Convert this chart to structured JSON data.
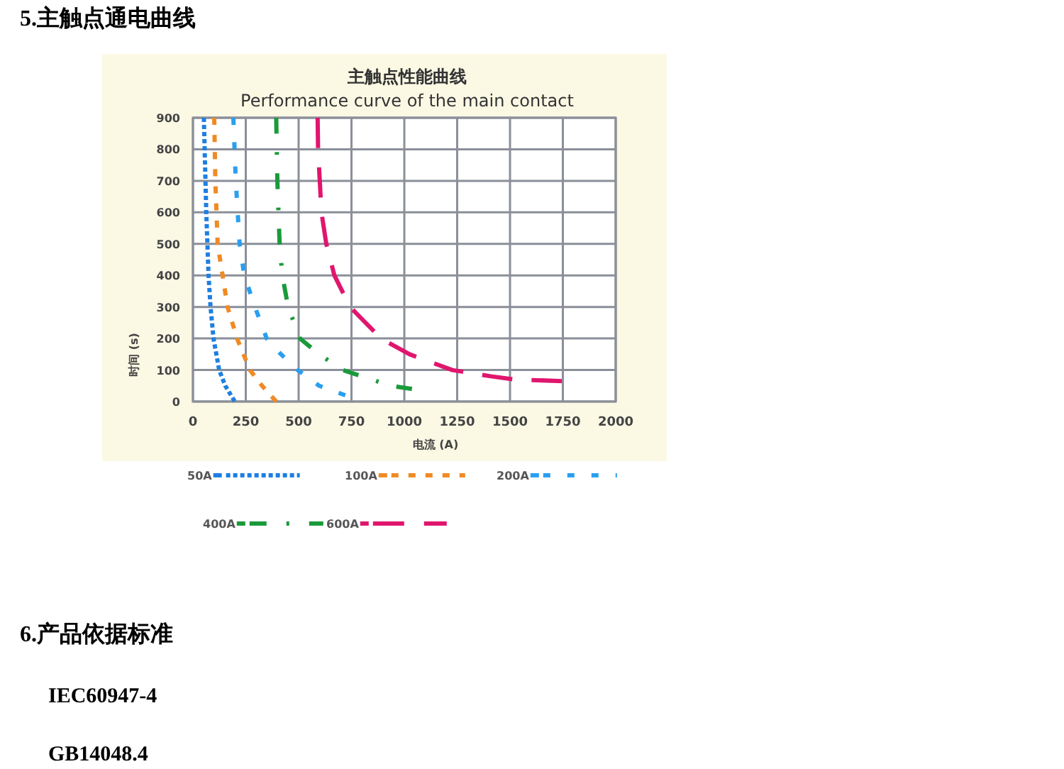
{
  "chart_data": {
    "type": "line",
    "title": "主触点性能曲线",
    "subtitle": "Performance curve of the main contact",
    "xlabel": "电流 (A)",
    "ylabel": "时间 (s)",
    "annotations": [
      "5.主触点通电曲线",
      "6.产品依据标准",
      "IEC60947-4",
      "GB14048.4"
    ],
    "xlim": [
      0,
      2000
    ],
    "xticks": [
      0,
      250,
      500,
      750,
      1000,
      1250,
      1500,
      1750,
      2000
    ],
    "ylim": [
      0,
      900
    ],
    "yticks": [
      0,
      100,
      200,
      300,
      400,
      500,
      600,
      700,
      800,
      900
    ],
    "grid": true,
    "legend": "bottom",
    "series": [
      {
        "name": "50A",
        "color": "#1e7fe0",
        "line_style": "dotted",
        "x": [
          52,
          63,
          74,
          83,
          97,
          124,
          153,
          198
        ],
        "values": [
          900,
          600,
          400,
          300,
          200,
          100,
          50,
          0
        ]
      },
      {
        "name": "100A",
        "color": "#f08a24",
        "line_style": "dashed",
        "x": [
          101,
          106,
          117,
          140,
          164,
          209,
          270,
          327,
          394
        ],
        "values": [
          900,
          700,
          500,
          400,
          300,
          200,
          100,
          50,
          0
        ]
      },
      {
        "name": "200A",
        "color": "#2a9fef",
        "line_style": "dashed",
        "x": [
          191,
          203,
          221,
          243,
          293,
          349,
          417,
          495,
          597,
          721
        ],
        "values": [
          900,
          700,
          500,
          400,
          300,
          200,
          150,
          100,
          50,
          20
        ]
      },
      {
        "name": "400A",
        "color": "#1a9a3a",
        "line_style": "dashed",
        "x": [
          394,
          399,
          410,
          423,
          450,
          507,
          597,
          709,
          800,
          935,
          1036
        ],
        "values": [
          900,
          700,
          500,
          400,
          300,
          200,
          150,
          100,
          80,
          50,
          40
        ]
      },
      {
        "name": "600A",
        "color": "#e0166e",
        "line_style": "dashed",
        "x": [
          590,
          592,
          608,
          631,
          669,
          743,
          890,
          1025,
          1227,
          1408,
          1520,
          1745
        ],
        "values": [
          900,
          800,
          600,
          500,
          400,
          300,
          200,
          150,
          100,
          80,
          70,
          65
        ]
      }
    ]
  }
}
